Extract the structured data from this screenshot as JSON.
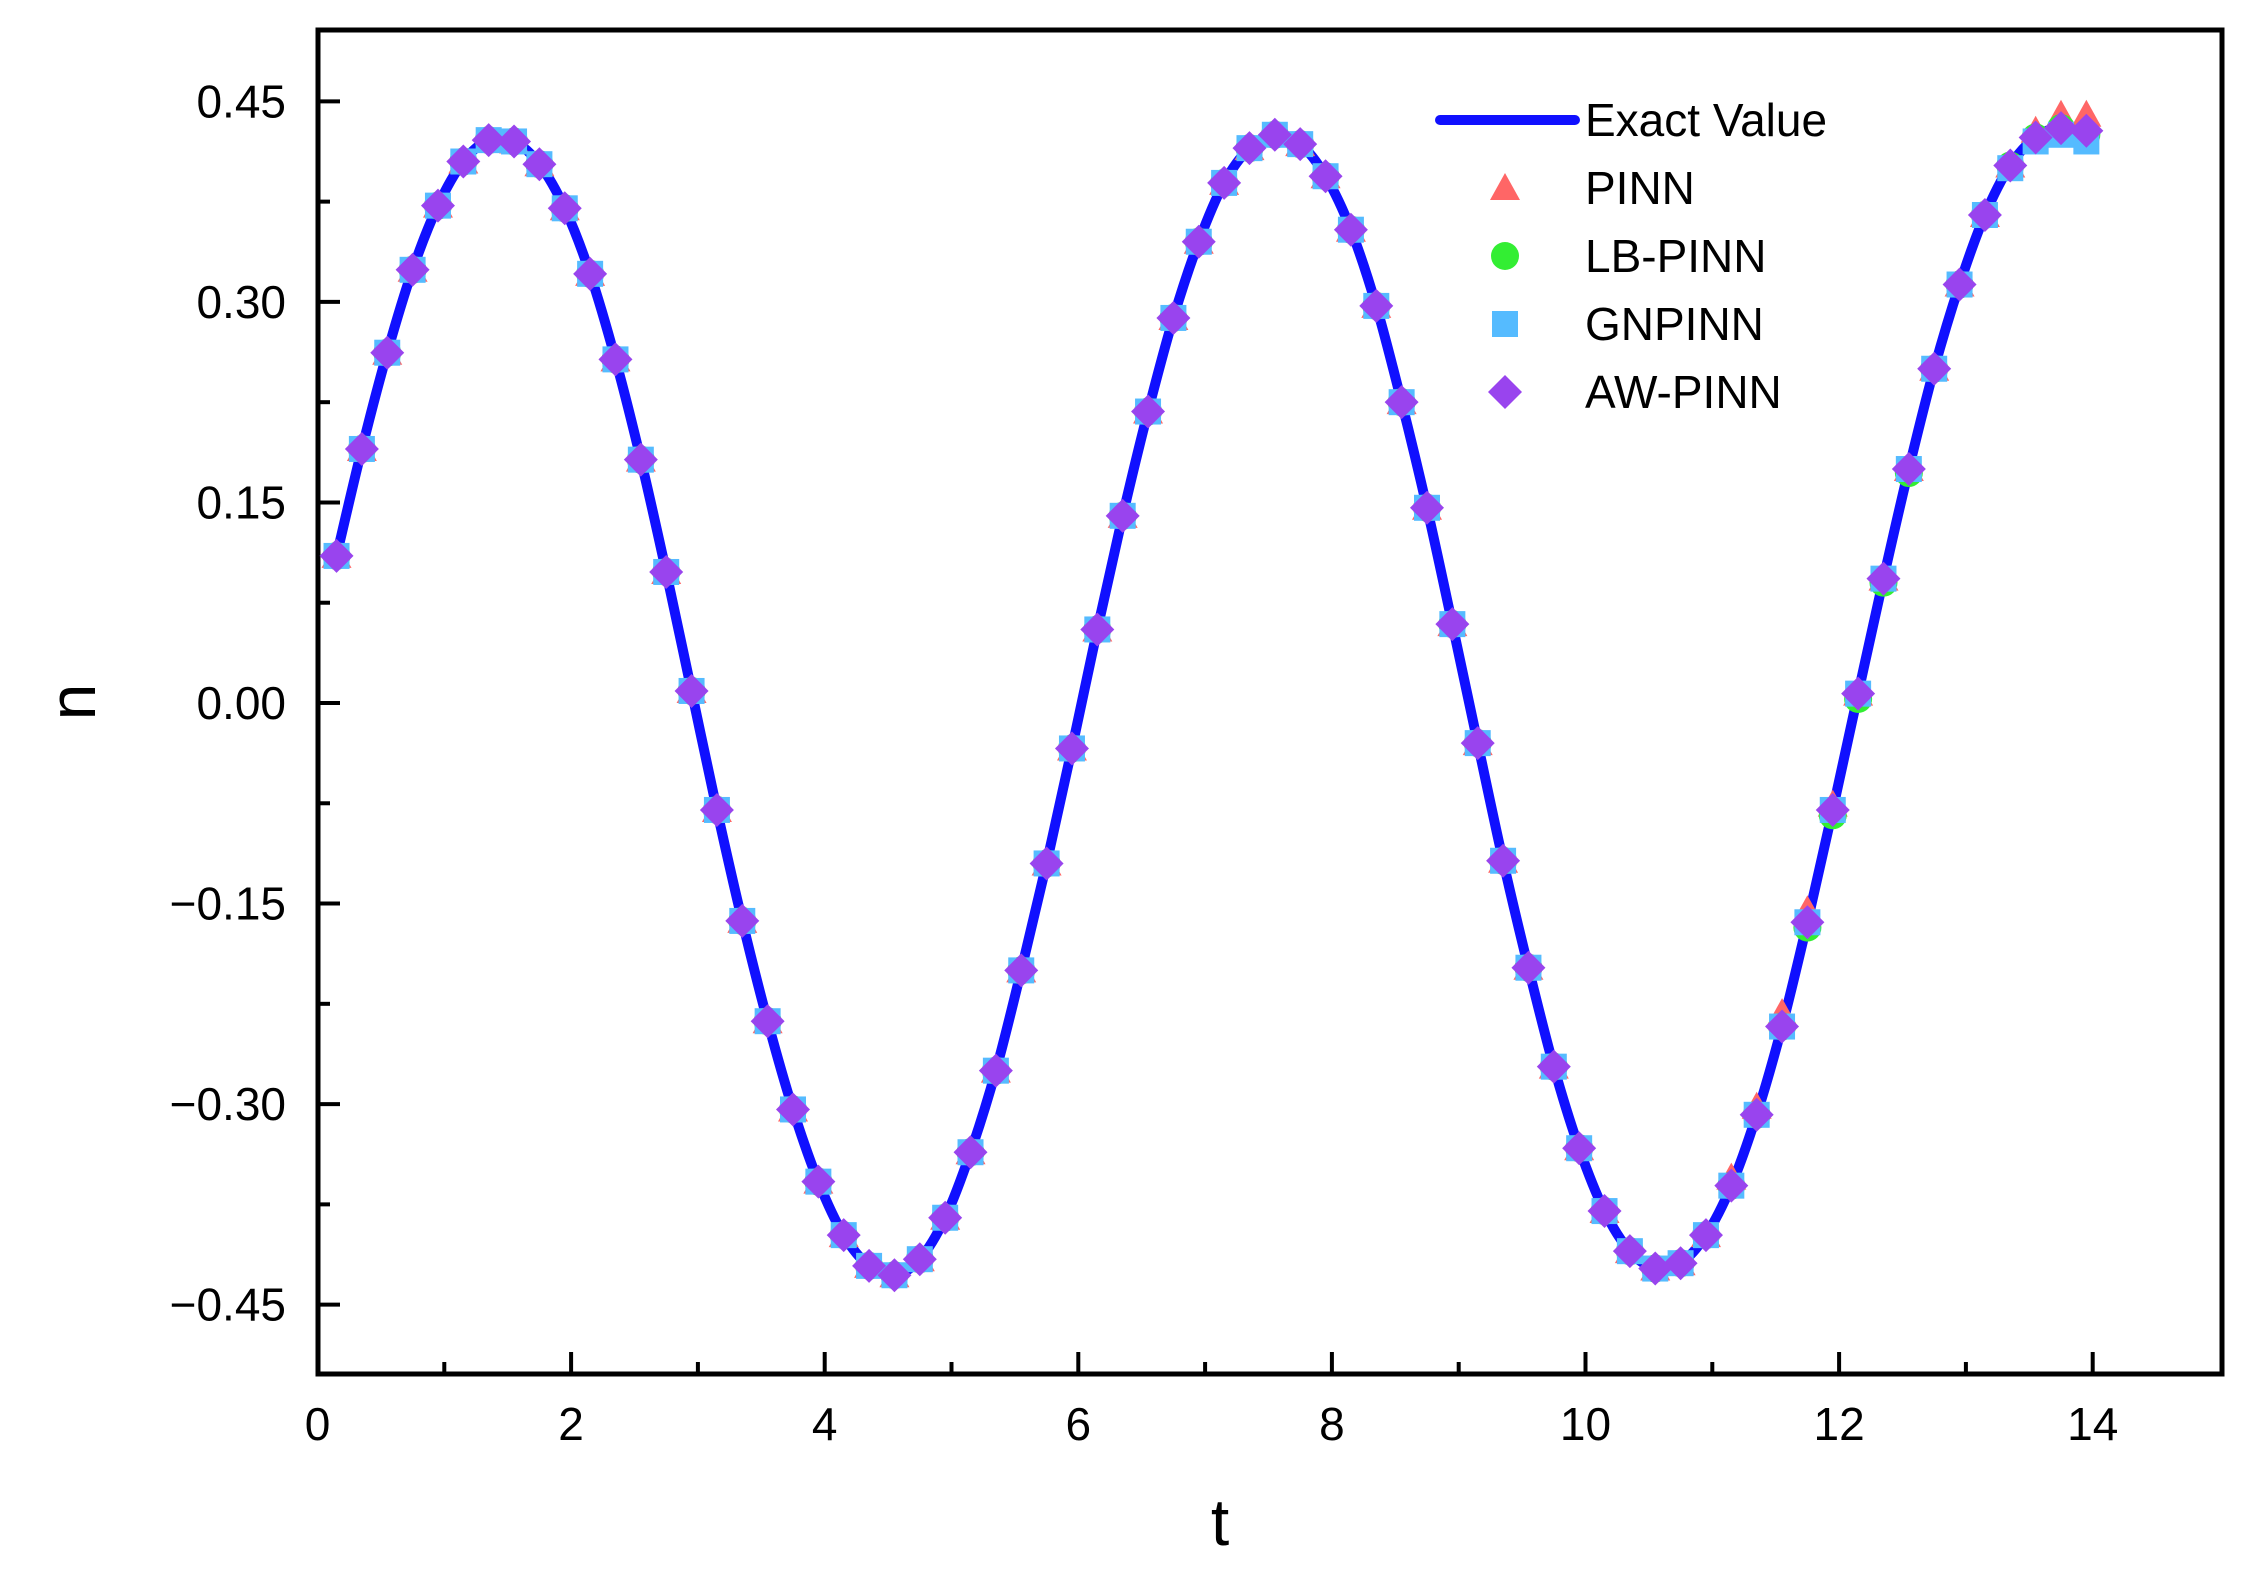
{
  "chart_data": {
    "type": "line",
    "title": "",
    "xlabel": "t",
    "ylabel": "n",
    "xlim": [
      0,
      15
    ],
    "ylim": [
      -0.5,
      0.5
    ],
    "x_ticks": [
      0,
      2,
      4,
      6,
      8,
      10,
      12,
      14
    ],
    "x_tick_labels": [
      "0",
      "2",
      "4",
      "6",
      "8",
      "10",
      "12",
      "14"
    ],
    "y_ticks": [
      0.45,
      0.3,
      0.15,
      0.0,
      -0.15,
      -0.3,
      -0.45
    ],
    "y_tick_labels": [
      "0.45",
      "0.30",
      "0.15",
      "0.00",
      "−0.15",
      "−0.30",
      "−0.45"
    ],
    "grid": false,
    "legend_position": "top-right",
    "x": [
      0.15,
      0.35,
      0.55,
      0.75,
      0.95,
      1.15,
      1.35,
      1.55,
      1.75,
      1.95,
      2.15,
      2.35,
      2.55,
      2.75,
      2.95,
      3.15,
      3.35,
      3.55,
      3.75,
      3.95,
      4.15,
      4.35,
      4.55,
      4.75,
      4.95,
      5.15,
      5.35,
      5.55,
      5.75,
      5.95,
      6.15,
      6.35,
      6.55,
      6.75,
      6.95,
      7.15,
      7.35,
      7.55,
      7.75,
      7.95,
      8.15,
      8.35,
      8.55,
      8.75,
      8.95,
      9.15,
      9.35,
      9.55,
      9.75,
      9.95,
      10.15,
      10.35,
      10.55,
      10.75,
      10.95,
      11.15,
      11.35,
      11.55,
      11.75,
      11.95,
      12.15,
      12.35,
      12.55,
      12.75,
      12.95,
      13.15,
      13.35,
      13.55,
      13.75,
      13.95
    ],
    "series": [
      {
        "name": "Exact Value",
        "style": "line",
        "color": "#1010ff",
        "values": [
          0.11,
          0.19,
          0.262,
          0.324,
          0.372,
          0.405,
          0.421,
          0.42,
          0.403,
          0.37,
          0.321,
          0.257,
          0.182,
          0.098,
          0.009,
          -0.08,
          -0.163,
          -0.238,
          -0.304,
          -0.358,
          -0.398,
          -0.421,
          -0.428,
          -0.416,
          -0.385,
          -0.336,
          -0.275,
          -0.2,
          -0.12,
          -0.034,
          0.055,
          0.14,
          0.218,
          0.288,
          0.345,
          0.389,
          0.415,
          0.425,
          0.418,
          0.394,
          0.354,
          0.297,
          0.225,
          0.146,
          0.059,
          -0.03,
          -0.118,
          -0.198,
          -0.272,
          -0.333,
          -0.38,
          -0.41,
          -0.423,
          -0.419,
          -0.398,
          -0.361,
          -0.308,
          -0.242,
          -0.164,
          -0.08,
          0.007,
          0.093,
          0.175,
          0.25,
          0.313,
          0.365,
          0.402,
          0.423,
          0.43,
          0.42
        ]
      },
      {
        "name": "PINN",
        "marker": "triangle",
        "color": "#ff6666",
        "values": [
          0.11,
          0.19,
          0.262,
          0.324,
          0.372,
          0.405,
          0.421,
          0.42,
          0.403,
          0.37,
          0.321,
          0.257,
          0.182,
          0.098,
          0.009,
          -0.08,
          -0.163,
          -0.238,
          -0.304,
          -0.358,
          -0.398,
          -0.421,
          -0.428,
          -0.416,
          -0.385,
          -0.336,
          -0.275,
          -0.2,
          -0.12,
          -0.034,
          0.055,
          0.14,
          0.218,
          0.288,
          0.345,
          0.389,
          0.415,
          0.425,
          0.418,
          0.394,
          0.354,
          0.297,
          0.225,
          0.146,
          0.059,
          -0.03,
          -0.118,
          -0.198,
          -0.272,
          -0.333,
          -0.38,
          -0.41,
          -0.423,
          -0.419,
          -0.398,
          -0.355,
          -0.302,
          -0.232,
          -0.155,
          -0.076,
          0.007,
          0.093,
          0.175,
          0.25,
          0.313,
          0.365,
          0.402,
          0.428,
          0.44,
          0.44
        ]
      },
      {
        "name": "LB-PINN",
        "marker": "circle",
        "color": "#33ee33",
        "values": [
          0.11,
          0.19,
          0.262,
          0.324,
          0.372,
          0.405,
          0.421,
          0.42,
          0.403,
          0.37,
          0.321,
          0.257,
          0.182,
          0.098,
          0.009,
          -0.08,
          -0.163,
          -0.238,
          -0.304,
          -0.358,
          -0.398,
          -0.421,
          -0.428,
          -0.416,
          -0.385,
          -0.336,
          -0.275,
          -0.2,
          -0.12,
          -0.034,
          0.055,
          0.14,
          0.218,
          0.288,
          0.345,
          0.389,
          0.415,
          0.425,
          0.418,
          0.394,
          0.354,
          0.297,
          0.225,
          0.146,
          0.059,
          -0.03,
          -0.118,
          -0.198,
          -0.272,
          -0.333,
          -0.38,
          -0.41,
          -0.423,
          -0.419,
          -0.398,
          -0.361,
          -0.308,
          -0.242,
          -0.168,
          -0.084,
          0.003,
          0.09,
          0.172,
          0.25,
          0.313,
          0.365,
          0.402,
          0.423,
          0.43,
          0.425
        ]
      },
      {
        "name": "GNPINN",
        "marker": "square",
        "color": "#55bbff",
        "values": [
          0.11,
          0.19,
          0.262,
          0.324,
          0.372,
          0.405,
          0.421,
          0.42,
          0.403,
          0.37,
          0.321,
          0.257,
          0.182,
          0.098,
          0.009,
          -0.08,
          -0.163,
          -0.238,
          -0.304,
          -0.358,
          -0.398,
          -0.421,
          -0.428,
          -0.416,
          -0.385,
          -0.336,
          -0.275,
          -0.2,
          -0.12,
          -0.034,
          0.055,
          0.14,
          0.218,
          0.288,
          0.345,
          0.389,
          0.415,
          0.425,
          0.418,
          0.394,
          0.354,
          0.297,
          0.225,
          0.146,
          0.059,
          -0.03,
          -0.118,
          -0.198,
          -0.272,
          -0.333,
          -0.38,
          -0.41,
          -0.423,
          -0.419,
          -0.398,
          -0.361,
          -0.308,
          -0.242,
          -0.164,
          -0.08,
          0.007,
          0.093,
          0.175,
          0.25,
          0.313,
          0.365,
          0.4,
          0.42,
          0.425,
          0.42
        ]
      },
      {
        "name": "AW-PINN",
        "marker": "diamond",
        "color": "#9944ee",
        "values": [
          0.11,
          0.19,
          0.262,
          0.324,
          0.372,
          0.405,
          0.421,
          0.42,
          0.403,
          0.37,
          0.321,
          0.257,
          0.182,
          0.098,
          0.009,
          -0.08,
          -0.163,
          -0.238,
          -0.304,
          -0.358,
          -0.398,
          -0.421,
          -0.428,
          -0.416,
          -0.385,
          -0.336,
          -0.275,
          -0.2,
          -0.12,
          -0.034,
          0.055,
          0.14,
          0.218,
          0.288,
          0.345,
          0.389,
          0.415,
          0.425,
          0.418,
          0.394,
          0.354,
          0.297,
          0.225,
          0.146,
          0.059,
          -0.03,
          -0.118,
          -0.198,
          -0.272,
          -0.333,
          -0.38,
          -0.41,
          -0.423,
          -0.419,
          -0.398,
          -0.361,
          -0.308,
          -0.242,
          -0.164,
          -0.08,
          0.007,
          0.093,
          0.175,
          0.25,
          0.313,
          0.365,
          0.402,
          0.423,
          0.43,
          0.428
        ]
      }
    ]
  }
}
